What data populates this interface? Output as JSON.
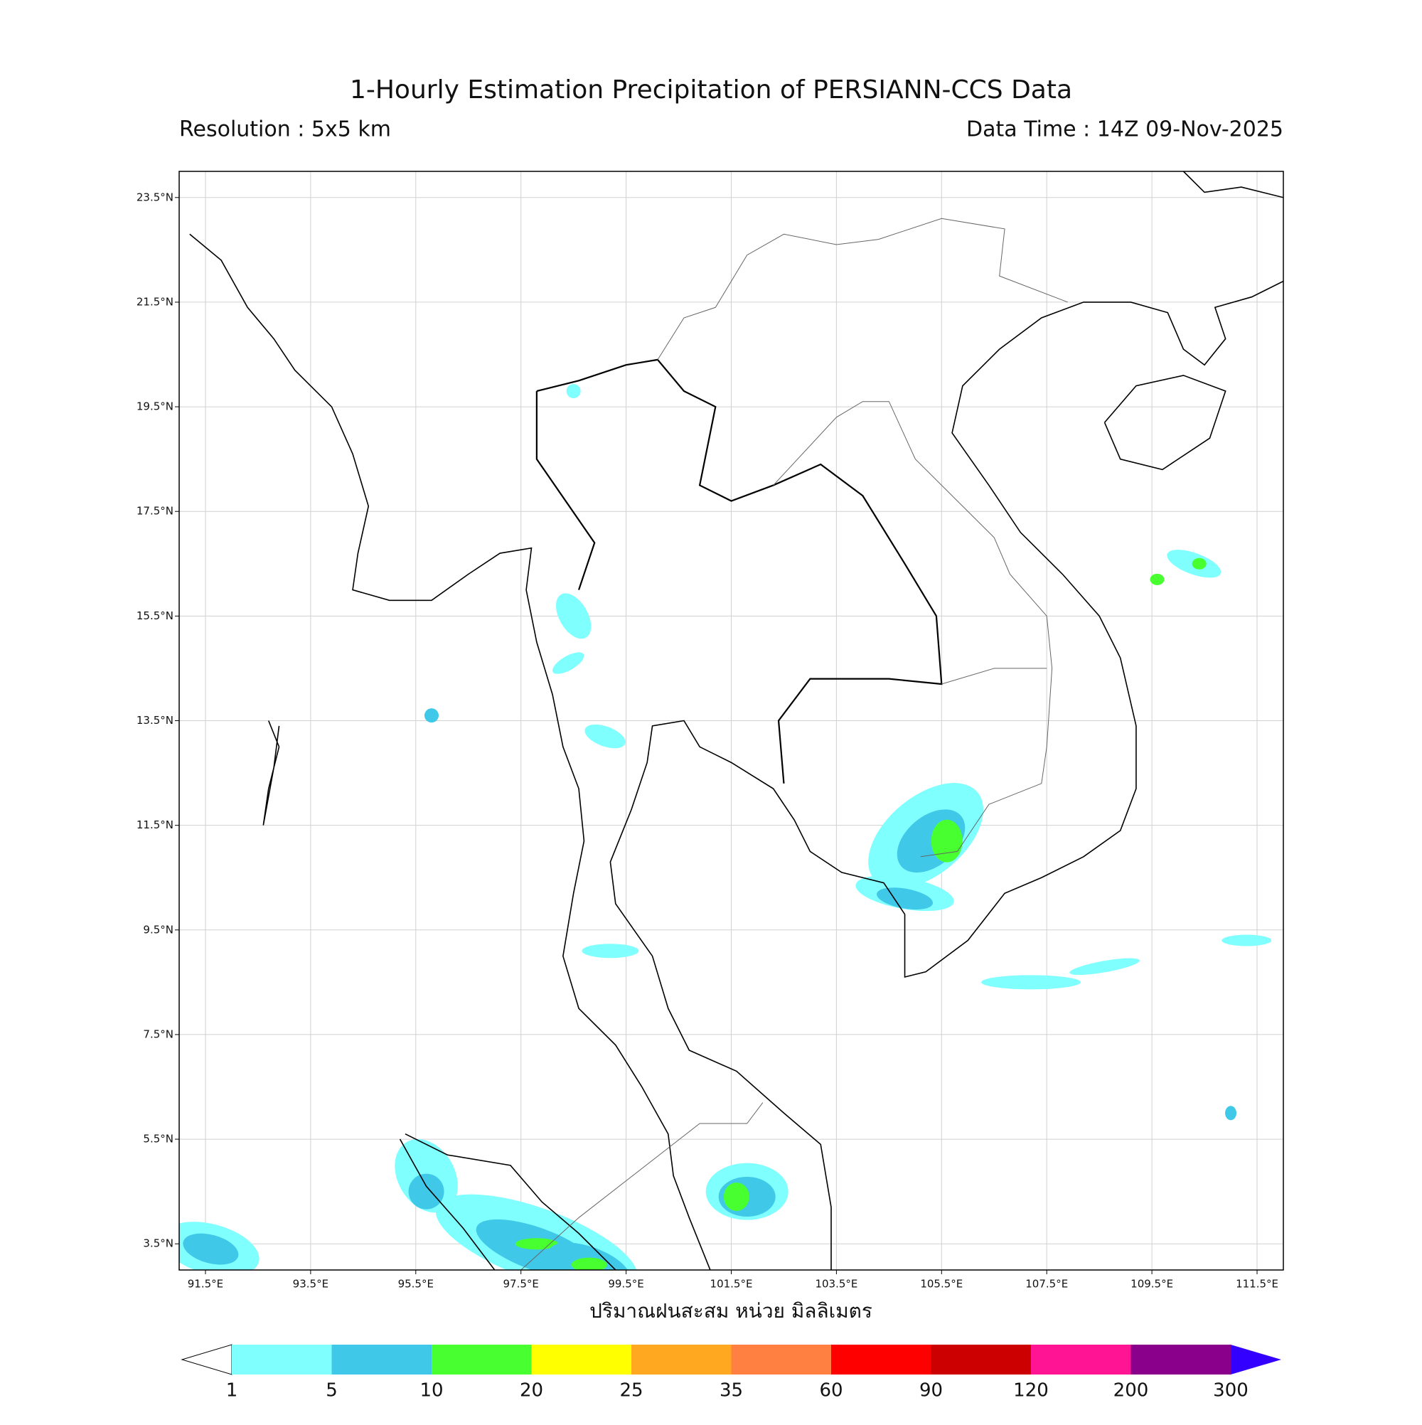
{
  "title": "1-Hourly Estimation Precipitation of PERSIANN-CCS Data",
  "resolution": "Resolution : 5x5 km",
  "data_time": "Data Time : 14Z 09-Nov-2025",
  "x_label": "ปริมาณฝนสะสม หน่วย มิลลิเมตร",
  "map": {
    "lonlim": [
      91,
      112
    ],
    "latlim": [
      3,
      24
    ],
    "grid": true,
    "lon_ticks": [
      {
        "value": 91.5,
        "label": "91.5°E"
      },
      {
        "value": 93.5,
        "label": "93.5°E"
      },
      {
        "value": 95.5,
        "label": "95.5°E"
      },
      {
        "value": 97.5,
        "label": "97.5°E"
      },
      {
        "value": 99.5,
        "label": "99.5°E"
      },
      {
        "value": 101.5,
        "label": "101.5°E"
      },
      {
        "value": 103.5,
        "label": "103.5°E"
      },
      {
        "value": 105.5,
        "label": "105.5°E"
      },
      {
        "value": 107.5,
        "label": "107.5°E"
      },
      {
        "value": 109.5,
        "label": "109.5°E"
      },
      {
        "value": 111.5,
        "label": "111.5°E"
      }
    ],
    "lat_ticks": [
      {
        "value": 3.5,
        "label": "3.5°N"
      },
      {
        "value": 5.5,
        "label": "5.5°N"
      },
      {
        "value": 7.5,
        "label": "7.5°N"
      },
      {
        "value": 9.5,
        "label": "9.5°N"
      },
      {
        "value": 11.5,
        "label": "11.5°N"
      },
      {
        "value": 13.5,
        "label": "13.5°N"
      },
      {
        "value": 15.5,
        "label": "15.5°N"
      },
      {
        "value": 17.5,
        "label": "17.5°N"
      },
      {
        "value": 19.5,
        "label": "19.5°N"
      },
      {
        "value": 21.5,
        "label": "21.5°N"
      },
      {
        "value": 23.5,
        "label": "23.5°N"
      }
    ]
  },
  "colorbar": {
    "bounds": [
      1,
      5,
      10,
      20,
      25,
      35,
      60,
      90,
      120,
      200,
      300
    ],
    "colors": [
      "#80ffff",
      "#40c8e8",
      "#48ff30",
      "#ffff00",
      "#ffa820",
      "#ff8040",
      "#ff0000",
      "#cc0000",
      "#ff1493",
      "#8b008b"
    ],
    "under_color": "#ffffff",
    "over_color": "#3300ff"
  }
}
